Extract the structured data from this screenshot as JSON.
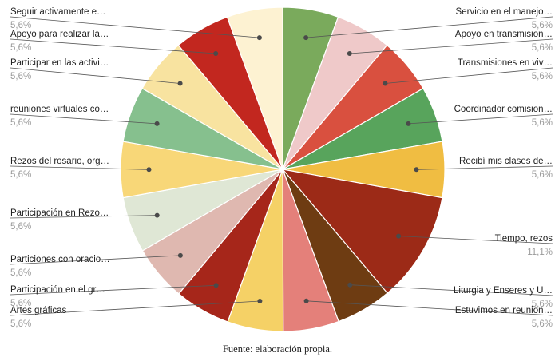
{
  "chart_data": {
    "type": "pie",
    "legend": "none",
    "slices": [
      {
        "label": "Servicio en el manejo…",
        "value": 5.6,
        "display": "5,6%",
        "color": "#7aaa5c"
      },
      {
        "label": "Apoyo en transmision…",
        "value": 5.6,
        "display": "5,6%",
        "color": "#efc9c9"
      },
      {
        "label": "Transmisiones en viv…",
        "value": 5.6,
        "display": "5,6%",
        "color": "#d9503f"
      },
      {
        "label": "Coordinador comision…",
        "value": 5.6,
        "display": "5,6%",
        "color": "#58a45c"
      },
      {
        "label": "Recibí mis clases de…",
        "value": 5.6,
        "display": "5,6%",
        "color": "#f0bd42"
      },
      {
        "label": "Tiempo, rezos",
        "value": 11.1,
        "display": "11,1%",
        "color": "#9c2a17"
      },
      {
        "label": "Liturgia y Enseres y U…",
        "value": 5.6,
        "display": "5,6%",
        "color": "#6e3c12"
      },
      {
        "label": "Estuvimos en reunion…",
        "value": 5.6,
        "display": "5,6%",
        "color": "#e4807a"
      },
      {
        "label": "Artes gráficas",
        "value": 5.6,
        "display": "5,6%",
        "color": "#f5d166"
      },
      {
        "label": "Participación en el gr…",
        "value": 5.6,
        "display": "5,6%",
        "color": "#a6261a"
      },
      {
        "label": "Particiones con oracio…",
        "value": 5.6,
        "display": "5,6%",
        "color": "#dfb8b0"
      },
      {
        "label": "Participación en Rezo…",
        "value": 5.6,
        "display": "5,6%",
        "color": "#dfe7d5"
      },
      {
        "label": "Rezos del rosario, org…",
        "value": 5.6,
        "display": "5,6%",
        "color": "#f8d778"
      },
      {
        "label": "reuniones virtuales co…",
        "value": 5.6,
        "display": "5,6%",
        "color": "#86c08e"
      },
      {
        "label": "Participar en las activi…",
        "value": 5.6,
        "display": "5,6%",
        "color": "#f8e3a0"
      },
      {
        "label": "Apoyo para realizar la…",
        "value": 5.6,
        "display": "5,6%",
        "color": "#c2271f"
      },
      {
        "label": "Seguir activamente e…",
        "value": 5.6,
        "display": "5,6%",
        "color": "#fdf2d2"
      }
    ]
  },
  "source": "Fuente: elaboración propia."
}
